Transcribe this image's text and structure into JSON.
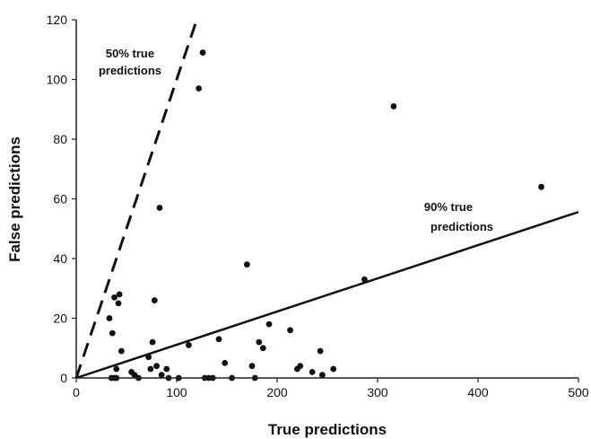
{
  "chart_data": {
    "type": "scatter",
    "xlabel": "True predictions",
    "ylabel": "False predictions",
    "xlim": [
      0,
      500
    ],
    "ylim": [
      0,
      120
    ],
    "xticks": [
      0,
      100,
      200,
      300,
      400,
      500
    ],
    "yticks": [
      0,
      20,
      40,
      60,
      80,
      100,
      120
    ],
    "grid": false,
    "points": [
      [
        35,
        0
      ],
      [
        38,
        0
      ],
      [
        40,
        0
      ],
      [
        33,
        20
      ],
      [
        36,
        15
      ],
      [
        38,
        27
      ],
      [
        40,
        3
      ],
      [
        42,
        25
      ],
      [
        43,
        28
      ],
      [
        45,
        9
      ],
      [
        55,
        2
      ],
      [
        58,
        1
      ],
      [
        62,
        0
      ],
      [
        72,
        7
      ],
      [
        74,
        3
      ],
      [
        76,
        12
      ],
      [
        78,
        26
      ],
      [
        80,
        4
      ],
      [
        83,
        57
      ],
      [
        85,
        1
      ],
      [
        90,
        3
      ],
      [
        92,
        0
      ],
      [
        102,
        0
      ],
      [
        112,
        11
      ],
      [
        122,
        97
      ],
      [
        126,
        109
      ],
      [
        128,
        0
      ],
      [
        132,
        0
      ],
      [
        136,
        0
      ],
      [
        142,
        13
      ],
      [
        148,
        5
      ],
      [
        155,
        0
      ],
      [
        170,
        38
      ],
      [
        175,
        4
      ],
      [
        178,
        0
      ],
      [
        182,
        12
      ],
      [
        186,
        10
      ],
      [
        192,
        18
      ],
      [
        213,
        16
      ],
      [
        220,
        3
      ],
      [
        223,
        4
      ],
      [
        235,
        2
      ],
      [
        243,
        9
      ],
      [
        245,
        1
      ],
      [
        256,
        3
      ],
      [
        287,
        33
      ],
      [
        316,
        91
      ],
      [
        463,
        64
      ]
    ],
    "lines": [
      {
        "label": "50% true predictions",
        "style": "dashed",
        "x": [
          0,
          120
        ],
        "y": [
          0,
          120
        ]
      },
      {
        "label": "90% true predictions",
        "style": "solid",
        "x": [
          0,
          500
        ],
        "y": [
          0,
          55.6
        ]
      }
    ],
    "annotations": [
      {
        "text_lines": [
          "50% true",
          "predictions"
        ]
      },
      {
        "text_lines": [
          "90% true",
          "predictions"
        ]
      }
    ]
  }
}
